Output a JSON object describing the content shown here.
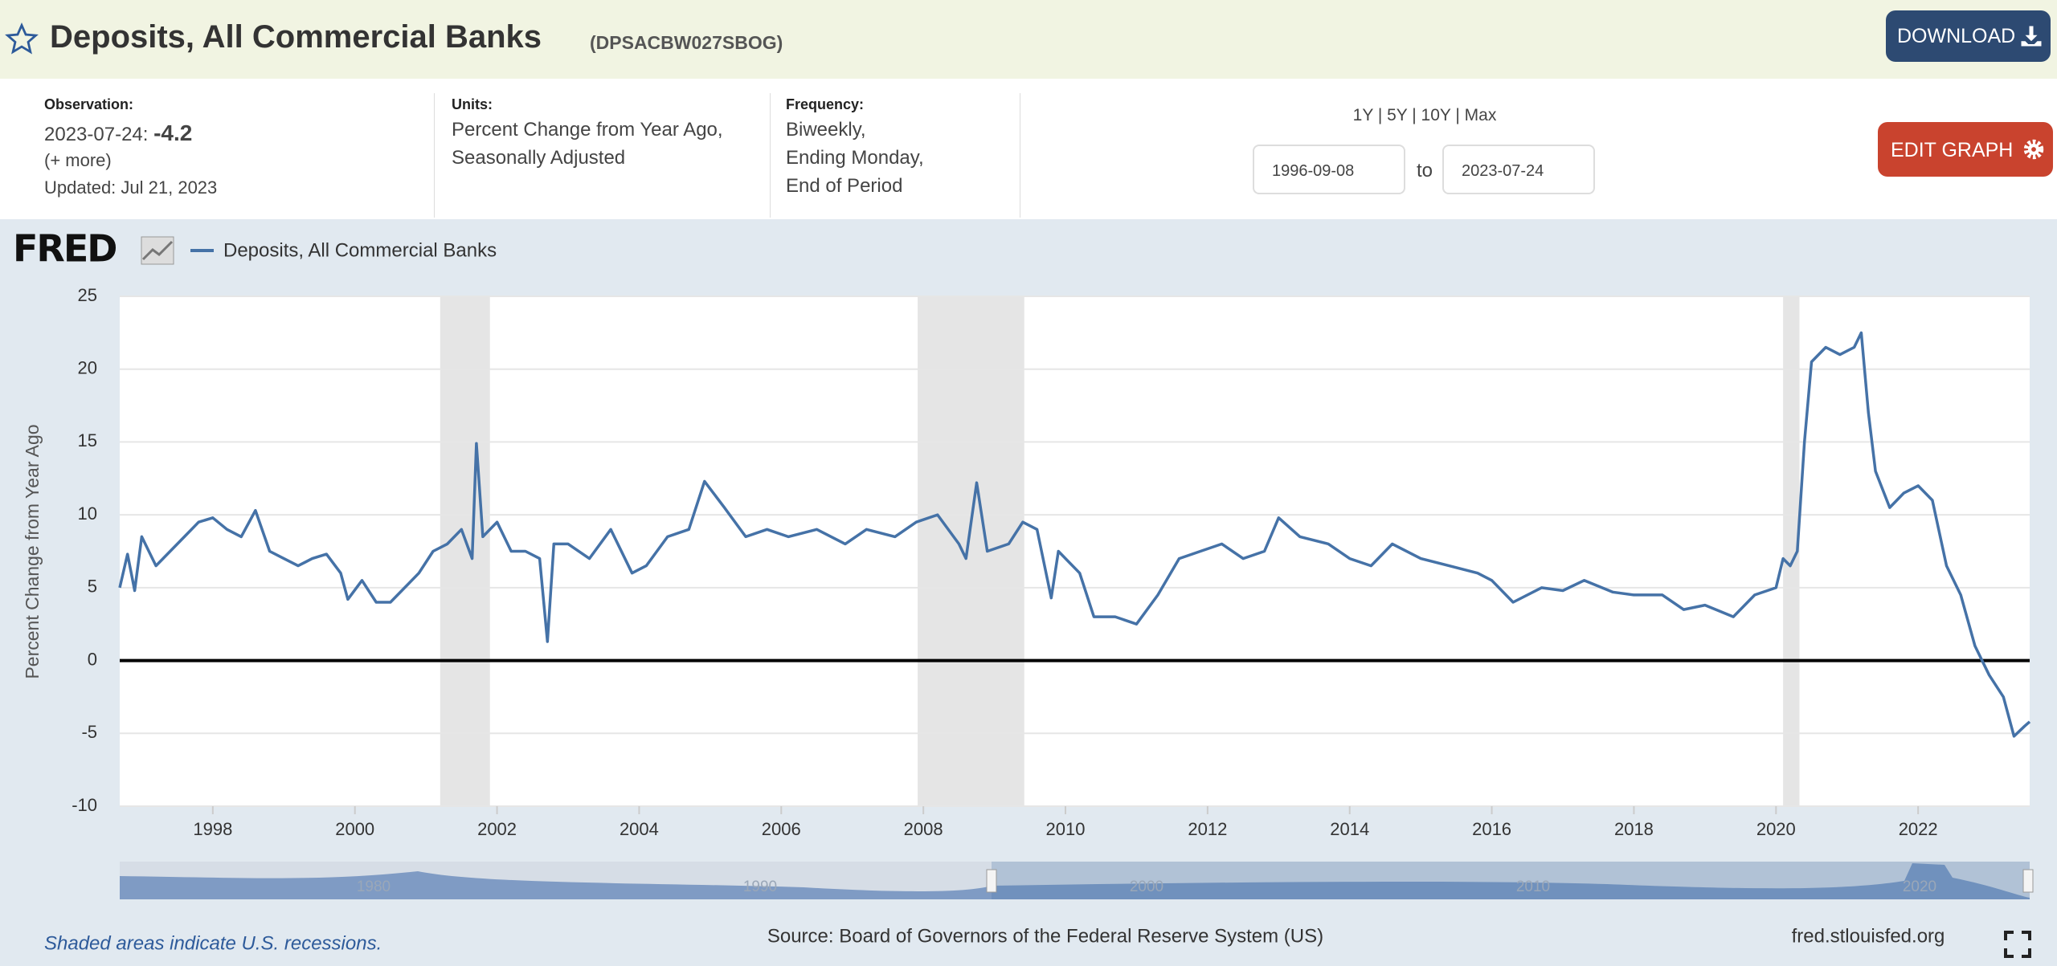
{
  "header": {
    "title": "Deposits, All Commercial Banks",
    "series_id": "(DPSACBW027SBOG)",
    "download": "DOWNLOAD"
  },
  "info": {
    "observation_label": "Observation:",
    "observation_date": "2023-07-24:",
    "observation_value": -4.2,
    "more": "(+ more)",
    "updated": "Updated: Jul 21, 2023",
    "units_label": "Units:",
    "units": [
      "Percent Change from Year Ago,",
      "Seasonally Adjusted"
    ],
    "frequency_label": "Frequency:",
    "frequency": [
      "Biweekly,",
      "Ending Monday,",
      "End of Period"
    ],
    "ranges": "1Y | 5Y | 10Y | Max",
    "date_from": "1996-09-08",
    "to": "to",
    "date_to": "2023-07-24",
    "edit": "EDIT GRAPH"
  },
  "chart_data": {
    "type": "line",
    "logo": "FRED",
    "y_label": "Percent Change from Year Ago",
    "x": [
      1996.69,
      1996.8,
      1996.9,
      1997.0,
      1997.2,
      1997.4,
      1997.6,
      1997.8,
      1998.0,
      1998.2,
      1998.4,
      1998.6,
      1998.8,
      1999.0,
      1999.2,
      1999.4,
      1999.6,
      1999.8,
      1999.9,
      2000.1,
      2000.3,
      2000.5,
      2000.7,
      2000.9,
      2001.1,
      2001.3,
      2001.5,
      2001.65,
      2001.71,
      2001.8,
      2002.0,
      2002.2,
      2002.4,
      2002.6,
      2002.71,
      2002.8,
      2003.0,
      2003.3,
      2003.6,
      2003.9,
      2004.1,
      2004.4,
      2004.7,
      2004.92,
      2005.2,
      2005.5,
      2005.8,
      2006.1,
      2006.5,
      2006.9,
      2007.2,
      2007.6,
      2007.9,
      2008.2,
      2008.5,
      2008.6,
      2008.75,
      2008.9,
      2009.2,
      2009.4,
      2009.6,
      2009.8,
      2009.9,
      2010.2,
      2010.4,
      2010.7,
      2011.0,
      2011.3,
      2011.6,
      2011.9,
      2012.2,
      2012.5,
      2012.8,
      2013.0,
      2013.3,
      2013.7,
      2014.0,
      2014.3,
      2014.6,
      2015.0,
      2015.4,
      2015.8,
      2016.0,
      2016.3,
      2016.7,
      2017.0,
      2017.3,
      2017.7,
      2018.0,
      2018.4,
      2018.7,
      2019.0,
      2019.4,
      2019.7,
      2020.0,
      2020.1,
      2020.2,
      2020.3,
      2020.4,
      2020.5,
      2020.7,
      2020.9,
      2021.1,
      2021.2,
      2021.3,
      2021.4,
      2021.6,
      2021.8,
      2022.0,
      2022.2,
      2022.4,
      2022.6,
      2022.8,
      2023.0,
      2023.2,
      2023.35,
      2023.5,
      2023.57
    ],
    "series": [
      {
        "name": "Deposits, All Commercial Banks",
        "color": "#4572a7",
        "values": [
          5,
          7.3,
          4.8,
          8.5,
          6.5,
          7.5,
          8.5,
          9.5,
          9.8,
          9.0,
          8.5,
          10.3,
          7.5,
          7.0,
          6.5,
          7.0,
          7.3,
          6.0,
          4.2,
          5.5,
          4.0,
          4.0,
          5.0,
          6.0,
          7.5,
          8.0,
          9.0,
          7.0,
          14.9,
          8.5,
          9.5,
          7.5,
          7.5,
          7.0,
          1.3,
          8.0,
          8.0,
          7.0,
          9.0,
          6.0,
          6.5,
          8.5,
          9.0,
          12.3,
          10.5,
          8.5,
          9.0,
          8.5,
          9.0,
          8.0,
          9.0,
          8.5,
          9.5,
          10.0,
          8.0,
          7.0,
          12.2,
          7.5,
          8.0,
          9.5,
          9.0,
          4.3,
          7.5,
          6.0,
          3.0,
          3.0,
          2.5,
          4.5,
          7.0,
          7.5,
          8.0,
          7.0,
          7.5,
          9.8,
          8.5,
          8.0,
          7.0,
          6.5,
          8.0,
          7.0,
          6.5,
          6.0,
          5.5,
          4.0,
          5.0,
          4.8,
          5.5,
          4.7,
          4.5,
          4.5,
          3.5,
          3.8,
          3.0,
          4.5,
          5.0,
          7.0,
          6.5,
          7.5,
          15,
          20.5,
          21.5,
          21.0,
          21.5,
          22.5,
          17.0,
          13.0,
          10.5,
          11.5,
          12.0,
          11.0,
          6.5,
          4.5,
          1.0,
          -1.0,
          -2.5,
          -5.2,
          -4.5,
          -4.2
        ]
      }
    ],
    "recessions": [
      [
        2001.2,
        2001.9
      ],
      [
        2007.92,
        2009.42
      ],
      [
        2020.1,
        2020.33
      ]
    ],
    "xlim": [
      1996.69,
      2023.57
    ],
    "xticks": [
      1998,
      2000,
      2002,
      2004,
      2006,
      2008,
      2010,
      2012,
      2014,
      2016,
      2018,
      2020,
      2022
    ],
    "ylim": [
      -10,
      25
    ],
    "yticks": [
      -10,
      -5,
      0,
      5,
      10,
      15,
      20,
      25
    ],
    "grid": true,
    "navigator_labels": [
      "1980",
      "1990",
      "2000",
      "2010",
      "2020"
    ],
    "note": "Shaded areas indicate U.S. recessions.",
    "source": "Source: Board of Governors of the Federal Reserve System (US)",
    "url": "fred.stlouisfed.org"
  }
}
